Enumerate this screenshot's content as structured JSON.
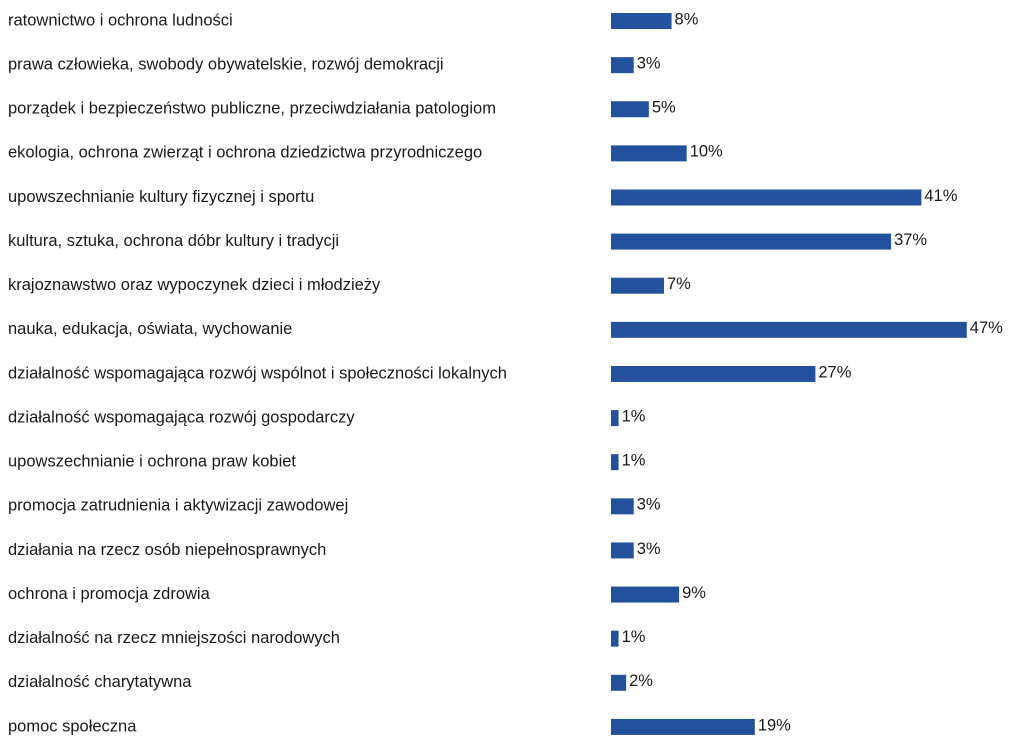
{
  "chart_data": {
    "type": "barh",
    "categories": [
      "ratownictwo i ochrona ludności",
      "prawa człowieka, swobody obywatelskie, rozwój demokracji",
      "porządek i bezpieczeństwo publiczne, przeciwdziałania patologiom",
      "ekologia, ochrona zwierząt i ochrona dziedzictwa przyrodniczego",
      "upowszechnianie kultury fizycznej i sportu",
      "kultura, sztuka, ochrona dóbr kultury i tradycji",
      "krajoznawstwo oraz wypoczynek dzieci i młodzieży",
      "nauka, edukacja, oświata, wychowanie",
      "działalność wspomagająca rozwój wspólnot i społeczności lokalnych",
      "działalność wspomagająca rozwój gospodarczy",
      "upowszechnianie i ochrona praw kobiet",
      "promocja zatrudnienia i aktywizacji zawodowej",
      "działania na rzecz osób niepełnosprawnych",
      "ochrona i promocja zdrowia",
      "działalność na rzecz mniejszości narodowych",
      "działalność charytatywna",
      "pomoc społeczna"
    ],
    "values": [
      8,
      3,
      5,
      10,
      41,
      37,
      7,
      47,
      27,
      1,
      1,
      3,
      3,
      9,
      1,
      2,
      19
    ],
    "value_labels": [
      "8%",
      "3%",
      "5%",
      "10%",
      "41%",
      "37%",
      "7%",
      "47%",
      "27%",
      "1%",
      "1%",
      "3%",
      "3%",
      "9%",
      "1%",
      "2%",
      "19%"
    ],
    "color": "#24519b"
  }
}
